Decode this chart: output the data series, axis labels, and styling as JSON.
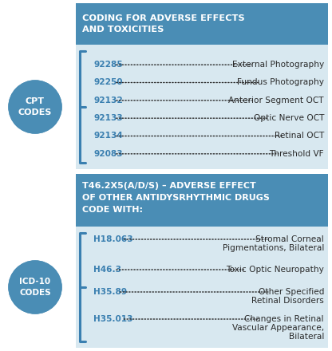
{
  "fig_width": 4.16,
  "fig_height": 4.4,
  "dpi": 100,
  "bg_color": "#ffffff",
  "header1_bg": "#4a8db5",
  "header2_bg": "#4a8db5",
  "section_bg": "#d8e8f0",
  "circle_color": "#4a8db5",
  "code_color": "#3a7fb0",
  "desc_color": "#2a2a2a",
  "bracket_color": "#3a7fb0",
  "header1_text_line1": "CODING FOR ADVERSE EFFECTS",
  "header1_text_line2": "AND TOXICITIES",
  "header2_text_line1": "T46.2X5(A/D/S) – ADVERSE EFFECT",
  "header2_text_line2": "OF OTHER ANTIDYSRHYTHMIC DRUGS",
  "header2_text_line3": "CODE WITH:",
  "circle1_text": "CPT\nCODES",
  "circle2_text": "ICD-10\nCODES",
  "cpt_codes": [
    [
      "92285",
      "External Photography"
    ],
    [
      "92250",
      "Fundus Photography"
    ],
    [
      "92132",
      "Anterior Segment OCT"
    ],
    [
      "92133",
      "Optic Nerve OCT"
    ],
    [
      "92134",
      "Retinal OCT"
    ],
    [
      "92083",
      "Threshold VF"
    ]
  ],
  "icd_codes": [
    [
      "H18.063",
      "Stromal Corneal",
      "Pigmentations, Bilateral"
    ],
    [
      "H46.3",
      "Toxic Optic Neuropathy",
      ""
    ],
    [
      "H35.89",
      "Other Specified",
      "Retinal Disorders"
    ],
    [
      "H35.013",
      "Changes in Retinal",
      "Vascular Appearance,",
      "Bilateral"
    ]
  ]
}
